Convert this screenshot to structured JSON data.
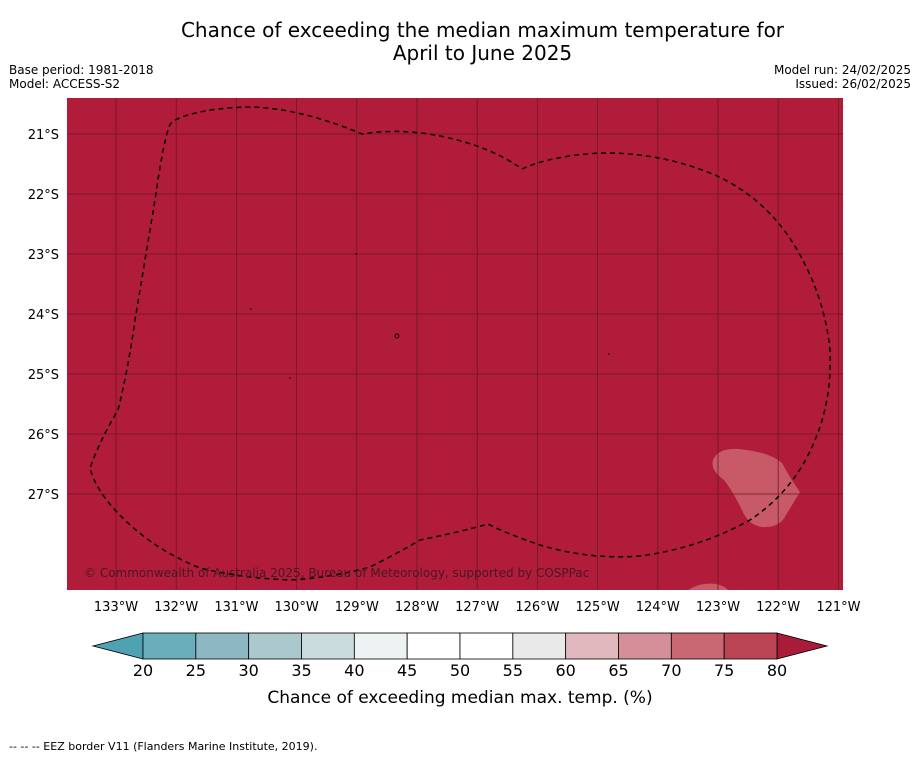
{
  "title_line1": "Chance of exceeding the median maximum temperature for",
  "title_line2": "April to June 2025",
  "meta_left": {
    "base_period": "Base period: 1981-2018",
    "model": "Model: ACCESS-S2"
  },
  "meta_right": {
    "model_run": "Model run: 24/02/2025",
    "issued": "Issued: 26/02/2025"
  },
  "map": {
    "lat_labels": [
      "21°S",
      "22°S",
      "23°S",
      "24°S",
      "25°S",
      "26°S",
      "27°S"
    ],
    "lon_labels": [
      "133°W",
      "132°W",
      "131°W",
      "130°W",
      "129°W",
      "128°W",
      "127°W",
      "126°W",
      "125°W",
      "124°W",
      "123°W",
      "122°W",
      "121°W"
    ],
    "copyright": "© Commonwealth of Australia 2025, Bureau of Meteorology, supported by COSPPac",
    "fill_color": "#b01c3a",
    "grid_color": "#6b1a24",
    "patch_color": "#c85a68"
  },
  "colorbar": {
    "ticks": [
      "20",
      "25",
      "30",
      "35",
      "40",
      "45",
      "50",
      "55",
      "60",
      "65",
      "70",
      "75",
      "80"
    ],
    "colors": [
      "#6aaebc",
      "#8db8c3",
      "#abc8cd",
      "#cbdcdf",
      "#edf2f3",
      "#ffffff",
      "#ffffff",
      "#e9e9ea",
      "#e0b8be",
      "#d48f98",
      "#c96772",
      "#ba4453"
    ],
    "under_color": "#4fa2b1",
    "over_color": "#a81c3a",
    "label": "Chance of exceeding median max. temp. (%)"
  },
  "footnote": "--  --  -- EEZ border V11 (Flanders Marine Institute, 2019)."
}
